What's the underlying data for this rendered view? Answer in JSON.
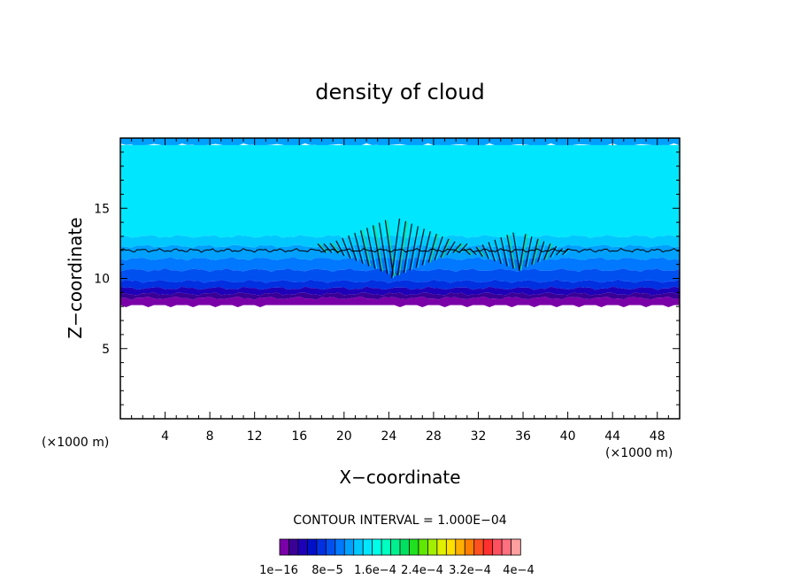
{
  "chart_data": {
    "type": "heatmap",
    "title": "density of cloud",
    "xlabel": "X−coordinate",
    "ylabel": "Z−coordinate",
    "x_unit": "(×1000 m)",
    "y_unit": "(×1000 m)",
    "xlim": [
      0,
      50
    ],
    "ylim": [
      0,
      20
    ],
    "x_ticks": [
      4,
      8,
      12,
      16,
      20,
      24,
      28,
      32,
      36,
      40,
      44,
      48
    ],
    "y_ticks": [
      5,
      10,
      15
    ],
    "x_tick_labels": [
      "4",
      "8",
      "12",
      "16",
      "20",
      "24",
      "28",
      "32",
      "36",
      "40",
      "44",
      "48"
    ],
    "y_tick_labels": [
      "5",
      "10",
      "15"
    ],
    "contour_interval_label": "CONTOUR INTERVAL = 1.000E−04",
    "colorbar": {
      "colors": [
        "#7a00a8",
        "#3a0096",
        "#1e00b8",
        "#0010c8",
        "#0030e0",
        "#0050f0",
        "#0078ff",
        "#00a0ff",
        "#00c8ff",
        "#00e6ff",
        "#00ffe8",
        "#00ffc0",
        "#00f090",
        "#00e060",
        "#20e020",
        "#60e800",
        "#a0f000",
        "#e0f000",
        "#ffe000",
        "#ffb000",
        "#ff8000",
        "#ff5020",
        "#ff3030",
        "#ff5060",
        "#ff7080",
        "#ffa0a0"
      ],
      "labels": [
        "1e−16",
        "8e−5",
        "1.6e−4",
        "2.4e−4",
        "3.2e−4",
        "4e−4"
      ]
    },
    "layers": [
      {
        "z_min": 19.5,
        "z_max": 20.0,
        "color": "#00a0ff"
      },
      {
        "z_min": 13.0,
        "z_max": 19.5,
        "color": "#00e6ff"
      },
      {
        "z_min": 12.3,
        "z_max": 13.0,
        "color": "#00c8ff"
      },
      {
        "z_min": 11.4,
        "z_max": 12.3,
        "color": "#00a0ff"
      },
      {
        "z_min": 10.6,
        "z_max": 11.4,
        "color": "#0078ff"
      },
      {
        "z_min": 9.8,
        "z_max": 10.6,
        "color": "#0050f0"
      },
      {
        "z_min": 9.3,
        "z_max": 9.8,
        "color": "#0030e0"
      },
      {
        "z_min": 8.9,
        "z_max": 9.3,
        "color": "#1e00b8"
      },
      {
        "z_min": 8.6,
        "z_max": 8.9,
        "color": "#3a0096"
      },
      {
        "z_min": 8.1,
        "z_max": 8.6,
        "color": "#7a00a8"
      }
    ],
    "contour_line_z": 12.0,
    "wave_regions": [
      {
        "x_min": 18,
        "x_max": 31,
        "z_min": 10.0,
        "z_max": 14.3
      },
      {
        "x_min": 31,
        "x_max": 40,
        "z_min": 10.5,
        "z_max": 13.3
      }
    ]
  }
}
